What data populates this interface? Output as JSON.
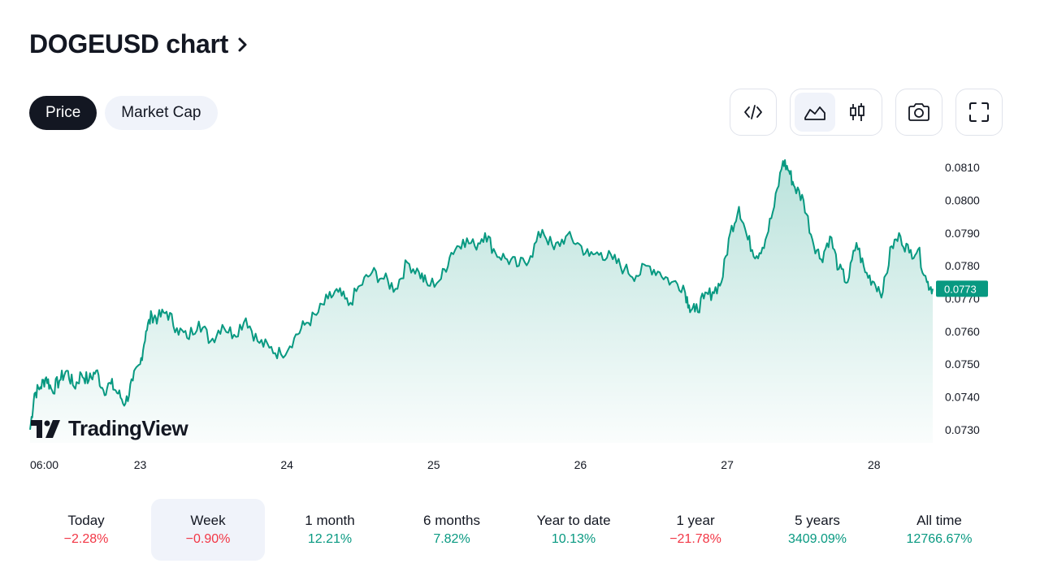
{
  "header": {
    "title": "DOGEUSD chart"
  },
  "tabs": [
    {
      "label": "Price",
      "active": true
    },
    {
      "label": "Market Cap",
      "active": false
    }
  ],
  "toolbar": {
    "embed_icon": "code-icon",
    "line_icon": "area-chart-icon",
    "candles_icon": "candlestick-icon",
    "snapshot_icon": "camera-icon",
    "fullscreen_icon": "fullscreen-icon"
  },
  "watermark": {
    "text": "TradingView"
  },
  "colors": {
    "line": "#089981",
    "positive": "#089981",
    "negative": "#f23645",
    "text": "#131722"
  },
  "chart_data": {
    "type": "area",
    "symbol": "DOGEUSD",
    "last_price": "0.0773",
    "x_tick_labels": [
      "06:00",
      "23",
      "24",
      "25",
      "26",
      "27",
      "28"
    ],
    "y_tick_labels": [
      "0.0810",
      "0.0800",
      "0.0790",
      "0.0780",
      "0.0770",
      "0.0760",
      "0.0750",
      "0.0740",
      "0.0730"
    ],
    "ylim": [
      0.0726,
      0.0814
    ],
    "grid": false,
    "x_days": [
      22.25,
      23,
      24,
      25,
      26,
      27,
      28,
      28.4
    ],
    "x_range": [
      22.25,
      28.4
    ],
    "series": [
      {
        "x": [
          22.25,
          22.28,
          22.32,
          22.36,
          22.4,
          22.45,
          22.5,
          22.55,
          22.6,
          22.65,
          22.7,
          22.75,
          22.8,
          22.85,
          22.9,
          22.95,
          23.0,
          23.04,
          23.08,
          23.12,
          23.18,
          23.25,
          23.32,
          23.4,
          23.48,
          23.56,
          23.64,
          23.72,
          23.8,
          23.88,
          23.96,
          24.05,
          24.12,
          24.2,
          24.28,
          24.35,
          24.42,
          24.5,
          24.58,
          24.66,
          24.74,
          24.82,
          24.9,
          24.96,
          25.05,
          25.12,
          25.2,
          25.28,
          25.35,
          25.42,
          25.5,
          25.58,
          25.66,
          25.74,
          25.82,
          25.9,
          25.98,
          26.06,
          26.14,
          26.22,
          26.3,
          26.38,
          26.46,
          26.54,
          26.62,
          26.7,
          26.74,
          26.78,
          26.84,
          26.9,
          26.96,
          27.02,
          27.08,
          27.14,
          27.2,
          27.26,
          27.32,
          27.38,
          27.42,
          27.46,
          27.52,
          27.58,
          27.64,
          27.7,
          27.76,
          27.82,
          27.88,
          27.94,
          28.0,
          28.06,
          28.12,
          28.18,
          28.24,
          28.3,
          28.36,
          28.4
        ],
        "y": [
          0.073,
          0.0741,
          0.0743,
          0.0746,
          0.0742,
          0.0745,
          0.0748,
          0.0743,
          0.0747,
          0.0745,
          0.0748,
          0.0742,
          0.0744,
          0.0741,
          0.0738,
          0.0745,
          0.075,
          0.076,
          0.0765,
          0.0764,
          0.0766,
          0.0761,
          0.0758,
          0.0763,
          0.0757,
          0.0762,
          0.0759,
          0.0764,
          0.0757,
          0.0755,
          0.0753,
          0.0758,
          0.0762,
          0.0765,
          0.077,
          0.0772,
          0.0768,
          0.0774,
          0.0778,
          0.0776,
          0.0773,
          0.0781,
          0.0778,
          0.0774,
          0.0776,
          0.0784,
          0.0788,
          0.0786,
          0.079,
          0.0784,
          0.0782,
          0.078,
          0.0783,
          0.0791,
          0.0785,
          0.0789,
          0.0787,
          0.0783,
          0.0784,
          0.0782,
          0.0779,
          0.0777,
          0.078,
          0.0778,
          0.0775,
          0.0774,
          0.0768,
          0.0766,
          0.077,
          0.0772,
          0.0775,
          0.079,
          0.0798,
          0.0788,
          0.0783,
          0.0788,
          0.0798,
          0.0812,
          0.0809,
          0.0804,
          0.08,
          0.0788,
          0.0782,
          0.0789,
          0.0779,
          0.0775,
          0.0787,
          0.0778,
          0.0775,
          0.0772,
          0.0786,
          0.0789,
          0.0784,
          0.0785,
          0.0775,
          0.0773
        ]
      }
    ]
  },
  "periods": [
    {
      "label": "Today",
      "value": "−2.28%",
      "sign": "neg",
      "selected": false
    },
    {
      "label": "Week",
      "value": "−0.90%",
      "sign": "neg",
      "selected": true
    },
    {
      "label": "1 month",
      "value": "12.21%",
      "sign": "pos",
      "selected": false
    },
    {
      "label": "6 months",
      "value": "7.82%",
      "sign": "pos",
      "selected": false
    },
    {
      "label": "Year to date",
      "value": "10.13%",
      "sign": "pos",
      "selected": false
    },
    {
      "label": "1 year",
      "value": "−21.78%",
      "sign": "neg",
      "selected": false
    },
    {
      "label": "5 years",
      "value": "3409.09%",
      "sign": "pos",
      "selected": false
    },
    {
      "label": "All time",
      "value": "12766.67%",
      "sign": "pos",
      "selected": false
    }
  ]
}
